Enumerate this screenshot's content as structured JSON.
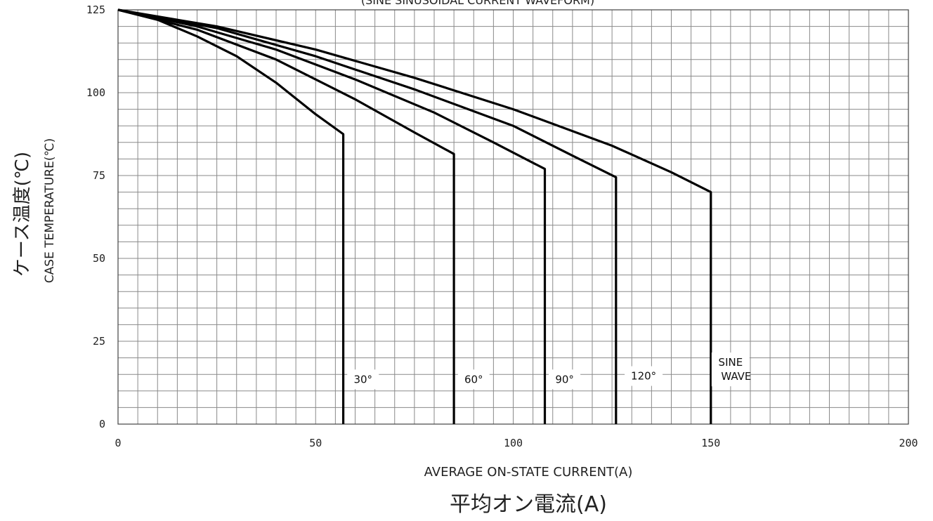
{
  "chart_data": {
    "type": "line",
    "header_fragment": "(SINE SINUSOIDAL CURRENT WAVEFORM)",
    "xlabel_en": "AVERAGE ON-STATE CURRENT(A)",
    "xlabel_ja": "平均オン電流(A)",
    "ylabel_en": "CASE TEMPERATURE(℃)",
    "ylabel_ja": "ケース温度(℃)",
    "xlim": [
      0,
      200
    ],
    "ylim": [
      0,
      125
    ],
    "x_ticks": [
      0,
      50,
      100,
      150,
      200
    ],
    "y_ticks": [
      0,
      25,
      50,
      75,
      100,
      125
    ],
    "x_minor_step": 5,
    "y_minor_step": 5,
    "grid": true,
    "series": [
      {
        "name": "30°",
        "label_lines": [
          "30°"
        ],
        "label_at": [
          62,
          13.5
        ],
        "points": [
          [
            0,
            125
          ],
          [
            10,
            122
          ],
          [
            20,
            117
          ],
          [
            30,
            111
          ],
          [
            40,
            103
          ],
          [
            50,
            93.5
          ],
          [
            57,
            87.5
          ],
          [
            57,
            0
          ]
        ]
      },
      {
        "name": "60°",
        "label_lines": [
          "60°"
        ],
        "label_at": [
          90,
          13.5
        ],
        "points": [
          [
            0,
            125
          ],
          [
            20,
            119
          ],
          [
            40,
            110
          ],
          [
            60,
            98
          ],
          [
            75,
            88
          ],
          [
            85,
            81.5
          ],
          [
            85,
            0
          ]
        ]
      },
      {
        "name": "90°",
        "label_lines": [
          "90°"
        ],
        "label_at": [
          113,
          13.5
        ],
        "points": [
          [
            0,
            125
          ],
          [
            20,
            120
          ],
          [
            40,
            113
          ],
          [
            60,
            104
          ],
          [
            80,
            94
          ],
          [
            95,
            85
          ],
          [
            108,
            77
          ],
          [
            108,
            0
          ]
        ]
      },
      {
        "name": "120°",
        "label_lines": [
          "120°"
        ],
        "label_at": [
          133,
          14.5
        ],
        "points": [
          [
            0,
            125
          ],
          [
            25,
            119.5
          ],
          [
            50,
            111
          ],
          [
            75,
            101
          ],
          [
            100,
            90
          ],
          [
            115,
            81
          ],
          [
            126,
            74.5
          ],
          [
            126,
            0
          ]
        ]
      },
      {
        "name": "SINE WAVE",
        "label_lines": [
          "SINE",
          "WAVE"
        ],
        "label_at": [
          155,
          16.5
        ],
        "points": [
          [
            0,
            125
          ],
          [
            25,
            120
          ],
          [
            50,
            113
          ],
          [
            75,
            104.5
          ],
          [
            100,
            95
          ],
          [
            125,
            84
          ],
          [
            140,
            76
          ],
          [
            150,
            70
          ],
          [
            150,
            0
          ]
        ]
      }
    ]
  }
}
